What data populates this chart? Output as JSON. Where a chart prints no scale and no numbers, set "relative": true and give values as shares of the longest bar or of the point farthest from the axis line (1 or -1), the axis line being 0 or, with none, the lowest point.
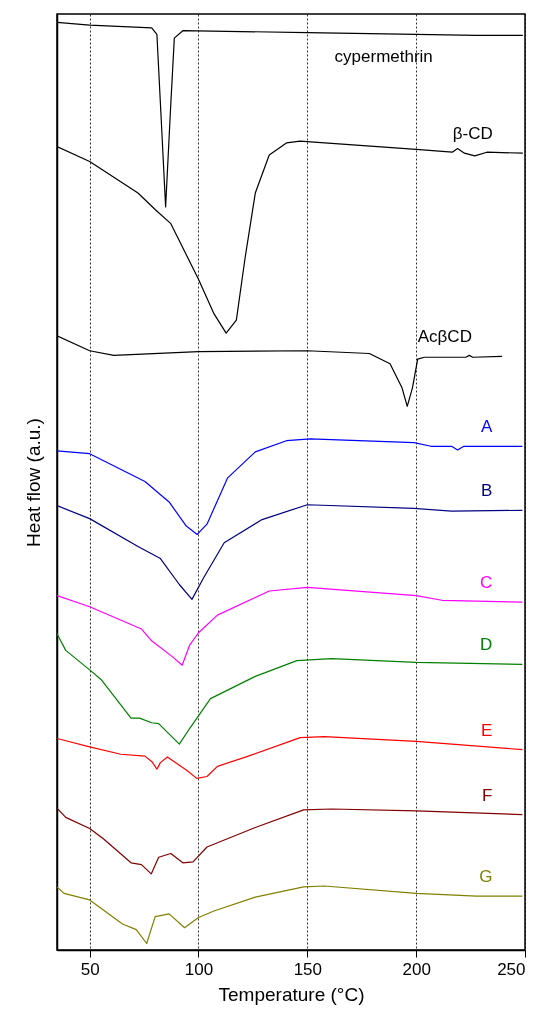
{
  "chart_data": {
    "type": "line",
    "xlabel": "Temperature (°C)",
    "ylabel": "Heat flow (a.u.)",
    "xlim": [
      35,
      250
    ],
    "xticks": [
      50,
      100,
      150,
      200,
      250
    ],
    "grid": "x",
    "relative": true,
    "series": [
      {
        "name": "cypermethrin",
        "color": "#000000",
        "x": [
          35,
          50,
          78.5,
          80.9,
          82.5,
          84.9,
          87.3,
          88.9,
          92.8,
          150,
          200,
          227.7,
          249
        ],
        "values": [
          1.0,
          0.997,
          0.994,
          0.987,
          0.913,
          0.801,
          0.913,
          0.983,
          0.991,
          0.989,
          0.987,
          0.986,
          0.986
        ]
      },
      {
        "name": "β-CD",
        "color": "#000000",
        "x": [
          35,
          50,
          72.2,
          80.2,
          87.3,
          92.8,
          100,
          107.1,
          112.7,
          117.4,
          121.4,
          126.1,
          132.5,
          140.4,
          146.7,
          200,
          216.6,
          219,
          222.2,
          226.9,
          232.5,
          249
        ],
        "values": [
          0.866,
          0.85,
          0.816,
          0.798,
          0.783,
          0.757,
          0.723,
          0.686,
          0.665,
          0.679,
          0.746,
          0.816,
          0.857,
          0.87,
          0.872,
          0.863,
          0.86,
          0.864,
          0.859,
          0.856,
          0.86,
          0.859
        ]
      },
      {
        "name": "AcβCD",
        "color": "#000000",
        "x": [
          35,
          50,
          61.1,
          100,
          150,
          178.5,
          188,
          193.5,
          195.9,
          198.3,
          200.7,
          203.8,
          222.8,
          224.4,
          226,
          239.4
        ],
        "values": [
          0.662,
          0.646,
          0.641,
          0.645,
          0.646,
          0.643,
          0.632,
          0.606,
          0.586,
          0.606,
          0.637,
          0.639,
          0.639,
          0.641,
          0.639,
          0.64
        ]
      },
      {
        "name": "A",
        "color": "#0000ff",
        "x": [
          35,
          50,
          75.4,
          86.5,
          94.4,
          99.4,
          103.9,
          113.4,
          126.1,
          140.4,
          151.4,
          199,
          206.8,
          216.3,
          219,
          221.9,
          248.8
        ],
        "values": [
          0.538,
          0.535,
          0.505,
          0.483,
          0.457,
          0.448,
          0.459,
          0.509,
          0.537,
          0.549,
          0.551,
          0.547,
          0.543,
          0.543,
          0.539,
          0.543,
          0.543
        ]
      },
      {
        "name": "B",
        "color": "#000080",
        "x": [
          35,
          50,
          72.2,
          82.5,
          91.2,
          97,
          102.3,
          111.8,
          129.2,
          150,
          199,
          216.3,
          248.8
        ],
        "values": [
          0.479,
          0.465,
          0.435,
          0.422,
          0.394,
          0.378,
          0.401,
          0.439,
          0.464,
          0.48,
          0.476,
          0.473,
          0.474
        ]
      },
      {
        "name": "C",
        "color": "#ff00ff",
        "x": [
          35,
          50,
          73.8,
          78.6,
          88.1,
          92.5,
          96,
          100,
          108.7,
          132.5,
          150,
          200,
          211.8,
          248.8
        ],
        "values": [
          0.382,
          0.37,
          0.346,
          0.333,
          0.316,
          0.307,
          0.329,
          0.342,
          0.361,
          0.387,
          0.391,
          0.382,
          0.377,
          0.375
        ]
      },
      {
        "name": "D",
        "color": "#008000",
        "x": [
          35,
          39,
          50,
          55.5,
          69,
          72.9,
          78.5,
          81.7,
          91.2,
          96,
          105.5,
          126.1,
          145.2,
          161.1,
          200,
          248.8
        ],
        "values": [
          0.341,
          0.323,
          0.302,
          0.291,
          0.25,
          0.25,
          0.245,
          0.244,
          0.222,
          0.239,
          0.271,
          0.295,
          0.312,
          0.314,
          0.31,
          0.308
        ]
      },
      {
        "name": "E",
        "color": "#ff0000",
        "x": [
          35,
          50,
          64.3,
          75.4,
          78.6,
          80.9,
          82.5,
          85.7,
          94.4,
          99.2,
          103.9,
          108.7,
          122.9,
          146.7,
          157.8,
          200,
          248.8
        ],
        "values": [
          0.228,
          0.219,
          0.211,
          0.209,
          0.203,
          0.195,
          0.202,
          0.208,
          0.194,
          0.185,
          0.187,
          0.198,
          0.209,
          0.229,
          0.23,
          0.225,
          0.216
        ]
      },
      {
        "name": "F",
        "color": "#800000",
        "x": [
          35,
          39,
          50,
          56.3,
          69,
          73.8,
          78.3,
          81.7,
          87.3,
          92.8,
          97.5,
          103.9,
          126.1,
          148.3,
          161.1,
          200,
          248.8
        ],
        "values": [
          0.153,
          0.143,
          0.131,
          0.12,
          0.094,
          0.092,
          0.082,
          0.1,
          0.104,
          0.094,
          0.095,
          0.111,
          0.132,
          0.151,
          0.152,
          0.15,
          0.146
        ]
      },
      {
        "name": "G",
        "color": "#808000",
        "x": [
          35,
          38.2,
          50,
          65.1,
          71.4,
          76.2,
          80.1,
          86.5,
          93.6,
          100,
          107.1,
          126.1,
          148.3,
          157.8,
          200,
          227.7,
          248.8
        ],
        "values": [
          0.068,
          0.061,
          0.054,
          0.028,
          0.022,
          0.007,
          0.036,
          0.039,
          0.024,
          0.035,
          0.042,
          0.057,
          0.068,
          0.069,
          0.061,
          0.058,
          0.058
        ]
      }
    ]
  }
}
